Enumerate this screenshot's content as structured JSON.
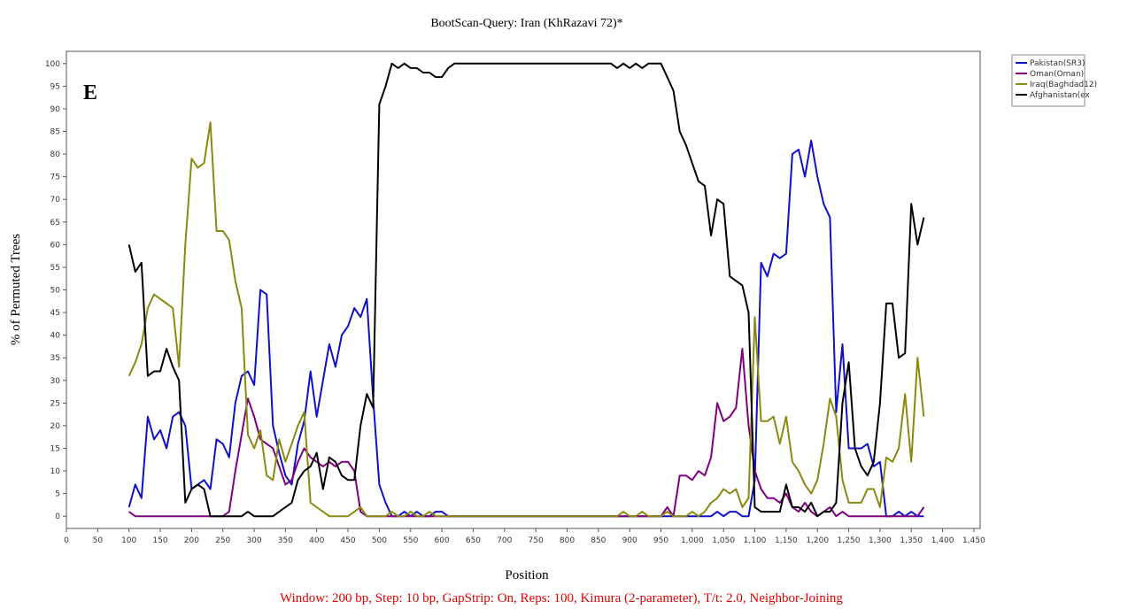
{
  "chart_data": {
    "type": "line",
    "title": "BootScan-Query: Iran (KhRazavi 72)*",
    "panel_label": "E",
    "xlabel": "Position",
    "ylabel": "% of Permuted Trees",
    "footnote": "Window: 200 bp, Step: 10 bp, GapStrip: On, Reps: 100, Kimura (2-parameter), T/t: 2.0, Neighbor-Joining",
    "legend": "top-right-outside",
    "xlim": [
      0,
      1460
    ],
    "ylim": [
      -2.7,
      102.7
    ],
    "xticks": [
      0,
      50,
      100,
      150,
      200,
      250,
      300,
      350,
      400,
      450,
      500,
      550,
      600,
      650,
      700,
      750,
      800,
      850,
      900,
      950,
      {
        "value": 1000,
        "label": "1,000"
      },
      {
        "value": 1050,
        "label": "1,050"
      },
      {
        "value": 1100,
        "label": "1,100"
      },
      {
        "value": 1150,
        "label": "1,150"
      },
      {
        "value": 1200,
        "label": "1,200"
      },
      {
        "value": 1250,
        "label": "1,250"
      },
      {
        "value": 1300,
        "label": "1,300"
      },
      {
        "value": 1350,
        "label": "1,350"
      },
      {
        "value": 1400,
        "label": "1,400"
      },
      {
        "value": 1450,
        "label": "1,450"
      }
    ],
    "yticks": [
      0,
      5,
      10,
      15,
      20,
      25,
      30,
      35,
      40,
      45,
      50,
      55,
      60,
      65,
      70,
      75,
      80,
      85,
      90,
      95,
      100
    ],
    "x": [
      100,
      110,
      120,
      130,
      140,
      150,
      160,
      170,
      180,
      190,
      200,
      210,
      220,
      230,
      240,
      250,
      260,
      270,
      280,
      290,
      300,
      310,
      320,
      330,
      340,
      350,
      360,
      370,
      380,
      390,
      400,
      410,
      420,
      430,
      440,
      450,
      460,
      470,
      480,
      490,
      500,
      510,
      520,
      530,
      540,
      550,
      560,
      570,
      580,
      590,
      600,
      610,
      620,
      630,
      640,
      650,
      660,
      670,
      680,
      690,
      700,
      710,
      720,
      730,
      740,
      750,
      760,
      770,
      780,
      790,
      800,
      810,
      820,
      830,
      840,
      850,
      860,
      870,
      880,
      890,
      900,
      910,
      920,
      930,
      940,
      950,
      960,
      970,
      980,
      990,
      1000,
      1010,
      1020,
      1030,
      1040,
      1050,
      1060,
      1070,
      1080,
      1090,
      1100,
      1110,
      1120,
      1130,
      1140,
      1150,
      1160,
      1170,
      1180,
      1190,
      1200,
      1210,
      1220,
      1230,
      1240,
      1250,
      1260,
      1270,
      1280,
      1290,
      1300,
      1310,
      1320,
      1330,
      1340,
      1350,
      1360,
      1370
    ],
    "series": [
      {
        "name": "Pakistan(SR3)",
        "color": "#1010c8",
        "values": [
          2,
          7,
          4,
          22,
          17,
          19,
          15,
          22,
          23,
          20,
          6,
          7,
          8,
          6,
          17,
          16,
          13,
          25,
          31,
          32,
          29,
          50,
          49,
          20,
          14,
          9,
          7,
          16,
          21,
          32,
          22,
          30,
          38,
          33,
          40,
          42,
          46,
          44,
          48,
          26,
          7,
          3,
          0,
          0,
          1,
          0,
          1,
          0,
          0,
          1,
          1,
          0,
          0,
          0,
          0,
          0,
          0,
          0,
          0,
          0,
          0,
          0,
          0,
          0,
          0,
          0,
          0,
          0,
          0,
          0,
          0,
          0,
          0,
          0,
          0,
          0,
          0,
          0,
          0,
          0,
          0,
          0,
          0,
          0,
          0,
          0,
          0,
          0,
          0,
          0,
          0,
          0,
          0,
          0,
          1,
          0,
          1,
          1,
          0,
          0,
          8,
          56,
          53,
          58,
          57,
          58,
          80,
          81,
          75,
          83,
          75,
          69,
          66,
          23,
          38,
          15,
          15,
          15,
          16,
          11,
          12,
          0,
          0,
          1,
          0,
          1,
          0,
          0
        ]
      },
      {
        "name": "Oman(Oman)",
        "color": "#800080",
        "values": [
          1,
          0,
          0,
          0,
          0,
          0,
          0,
          0,
          0,
          0,
          0,
          0,
          0,
          0,
          0,
          0,
          1,
          10,
          18,
          26,
          22,
          17,
          16,
          15,
          11,
          7,
          8,
          12,
          15,
          13,
          12,
          11,
          12,
          11,
          12,
          12,
          10,
          1,
          0,
          0,
          0,
          0,
          0,
          0,
          0,
          0,
          0,
          0,
          0,
          0,
          0,
          0,
          0,
          0,
          0,
          0,
          0,
          0,
          0,
          0,
          0,
          0,
          0,
          0,
          0,
          0,
          0,
          0,
          0,
          0,
          0,
          0,
          0,
          0,
          0,
          0,
          0,
          0,
          0,
          0,
          0,
          0,
          0,
          0,
          0,
          0,
          2,
          0,
          9,
          9,
          8,
          10,
          9,
          13,
          25,
          21,
          22,
          24,
          37,
          20,
          10,
          6,
          4,
          4,
          3,
          5,
          2,
          1,
          3,
          1,
          0,
          1,
          2,
          0,
          1,
          0,
          0,
          0,
          0,
          0,
          0,
          0,
          0,
          0,
          0,
          0,
          0,
          2
        ]
      },
      {
        "name": "Iraq(Baghdad12)",
        "color": "#8a8a10",
        "values": [
          31,
          34,
          38,
          46,
          49,
          48,
          47,
          46,
          33,
          60,
          79,
          77,
          78,
          87,
          63,
          63,
          61,
          52,
          46,
          18,
          15,
          19,
          9,
          8,
          17,
          12,
          16,
          20,
          23,
          3,
          2,
          1,
          0,
          0,
          0,
          0,
          1,
          2,
          0,
          0,
          0,
          0,
          1,
          0,
          0,
          1,
          0,
          0,
          1,
          0,
          0,
          0,
          0,
          0,
          0,
          0,
          0,
          0,
          0,
          0,
          0,
          0,
          0,
          0,
          0,
          0,
          0,
          0,
          0,
          0,
          0,
          0,
          0,
          0,
          0,
          0,
          0,
          0,
          0,
          1,
          0,
          0,
          1,
          0,
          0,
          0,
          1,
          0,
          0,
          0,
          1,
          0,
          1,
          3,
          4,
          6,
          5,
          6,
          2,
          4,
          44,
          21,
          21,
          22,
          16,
          22,
          12,
          10,
          7,
          5,
          8,
          16,
          26,
          22,
          8,
          3,
          3,
          3,
          6,
          6,
          2,
          13,
          12,
          15,
          27,
          12,
          35,
          22
        ]
      },
      {
        "name": "Afghanistan(ex",
        "color": "#000000",
        "values": [
          60,
          54,
          56,
          31,
          32,
          32,
          37,
          33,
          30,
          3,
          6,
          7,
          6,
          0,
          0,
          0,
          0,
          0,
          0,
          1,
          0,
          0,
          0,
          0,
          1,
          2,
          3,
          8,
          10,
          11,
          14,
          6,
          13,
          12,
          9,
          8,
          8,
          20,
          27,
          24,
          91,
          95,
          100,
          99,
          100,
          99,
          99,
          98,
          98,
          97,
          97,
          99,
          100,
          100,
          100,
          100,
          100,
          100,
          100,
          100,
          100,
          100,
          100,
          100,
          100,
          100,
          100,
          100,
          100,
          100,
          100,
          100,
          100,
          100,
          100,
          100,
          100,
          100,
          99,
          100,
          99,
          100,
          99,
          100,
          100,
          100,
          97,
          94,
          85,
          82,
          78,
          74,
          73,
          62,
          70,
          69,
          53,
          52,
          51,
          45,
          2,
          1,
          1,
          1,
          1,
          7,
          2,
          2,
          1,
          3,
          0,
          1,
          1,
          3,
          25,
          34,
          15,
          11,
          9,
          12,
          25,
          47,
          47,
          35,
          36,
          69,
          60,
          66
        ]
      }
    ]
  }
}
